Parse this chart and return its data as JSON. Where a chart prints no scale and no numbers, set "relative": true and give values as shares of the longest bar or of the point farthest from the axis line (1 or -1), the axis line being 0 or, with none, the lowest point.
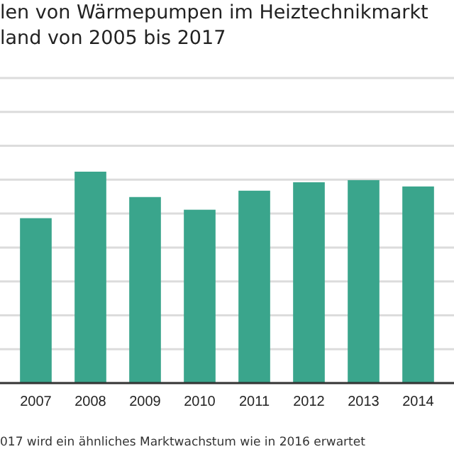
{
  "chart_data": {
    "type": "bar",
    "title": "len von Wärmepumpen im Heiztechnikmarkt\nland von 2005 bis 2017",
    "categories": [
      "2007",
      "2008",
      "2009",
      "2010",
      "2011",
      "2012",
      "2013",
      "2014"
    ],
    "values": [
      0.78,
      1,
      0.88,
      0.82,
      0.91,
      0.95,
      0.96,
      0.93
    ],
    "color": "#3aa58c",
    "relative": true,
    "grid": true,
    "annotations": [
      "017 wird ein ähnliches Marktwachstum wie in 2016 erwartet"
    ]
  }
}
